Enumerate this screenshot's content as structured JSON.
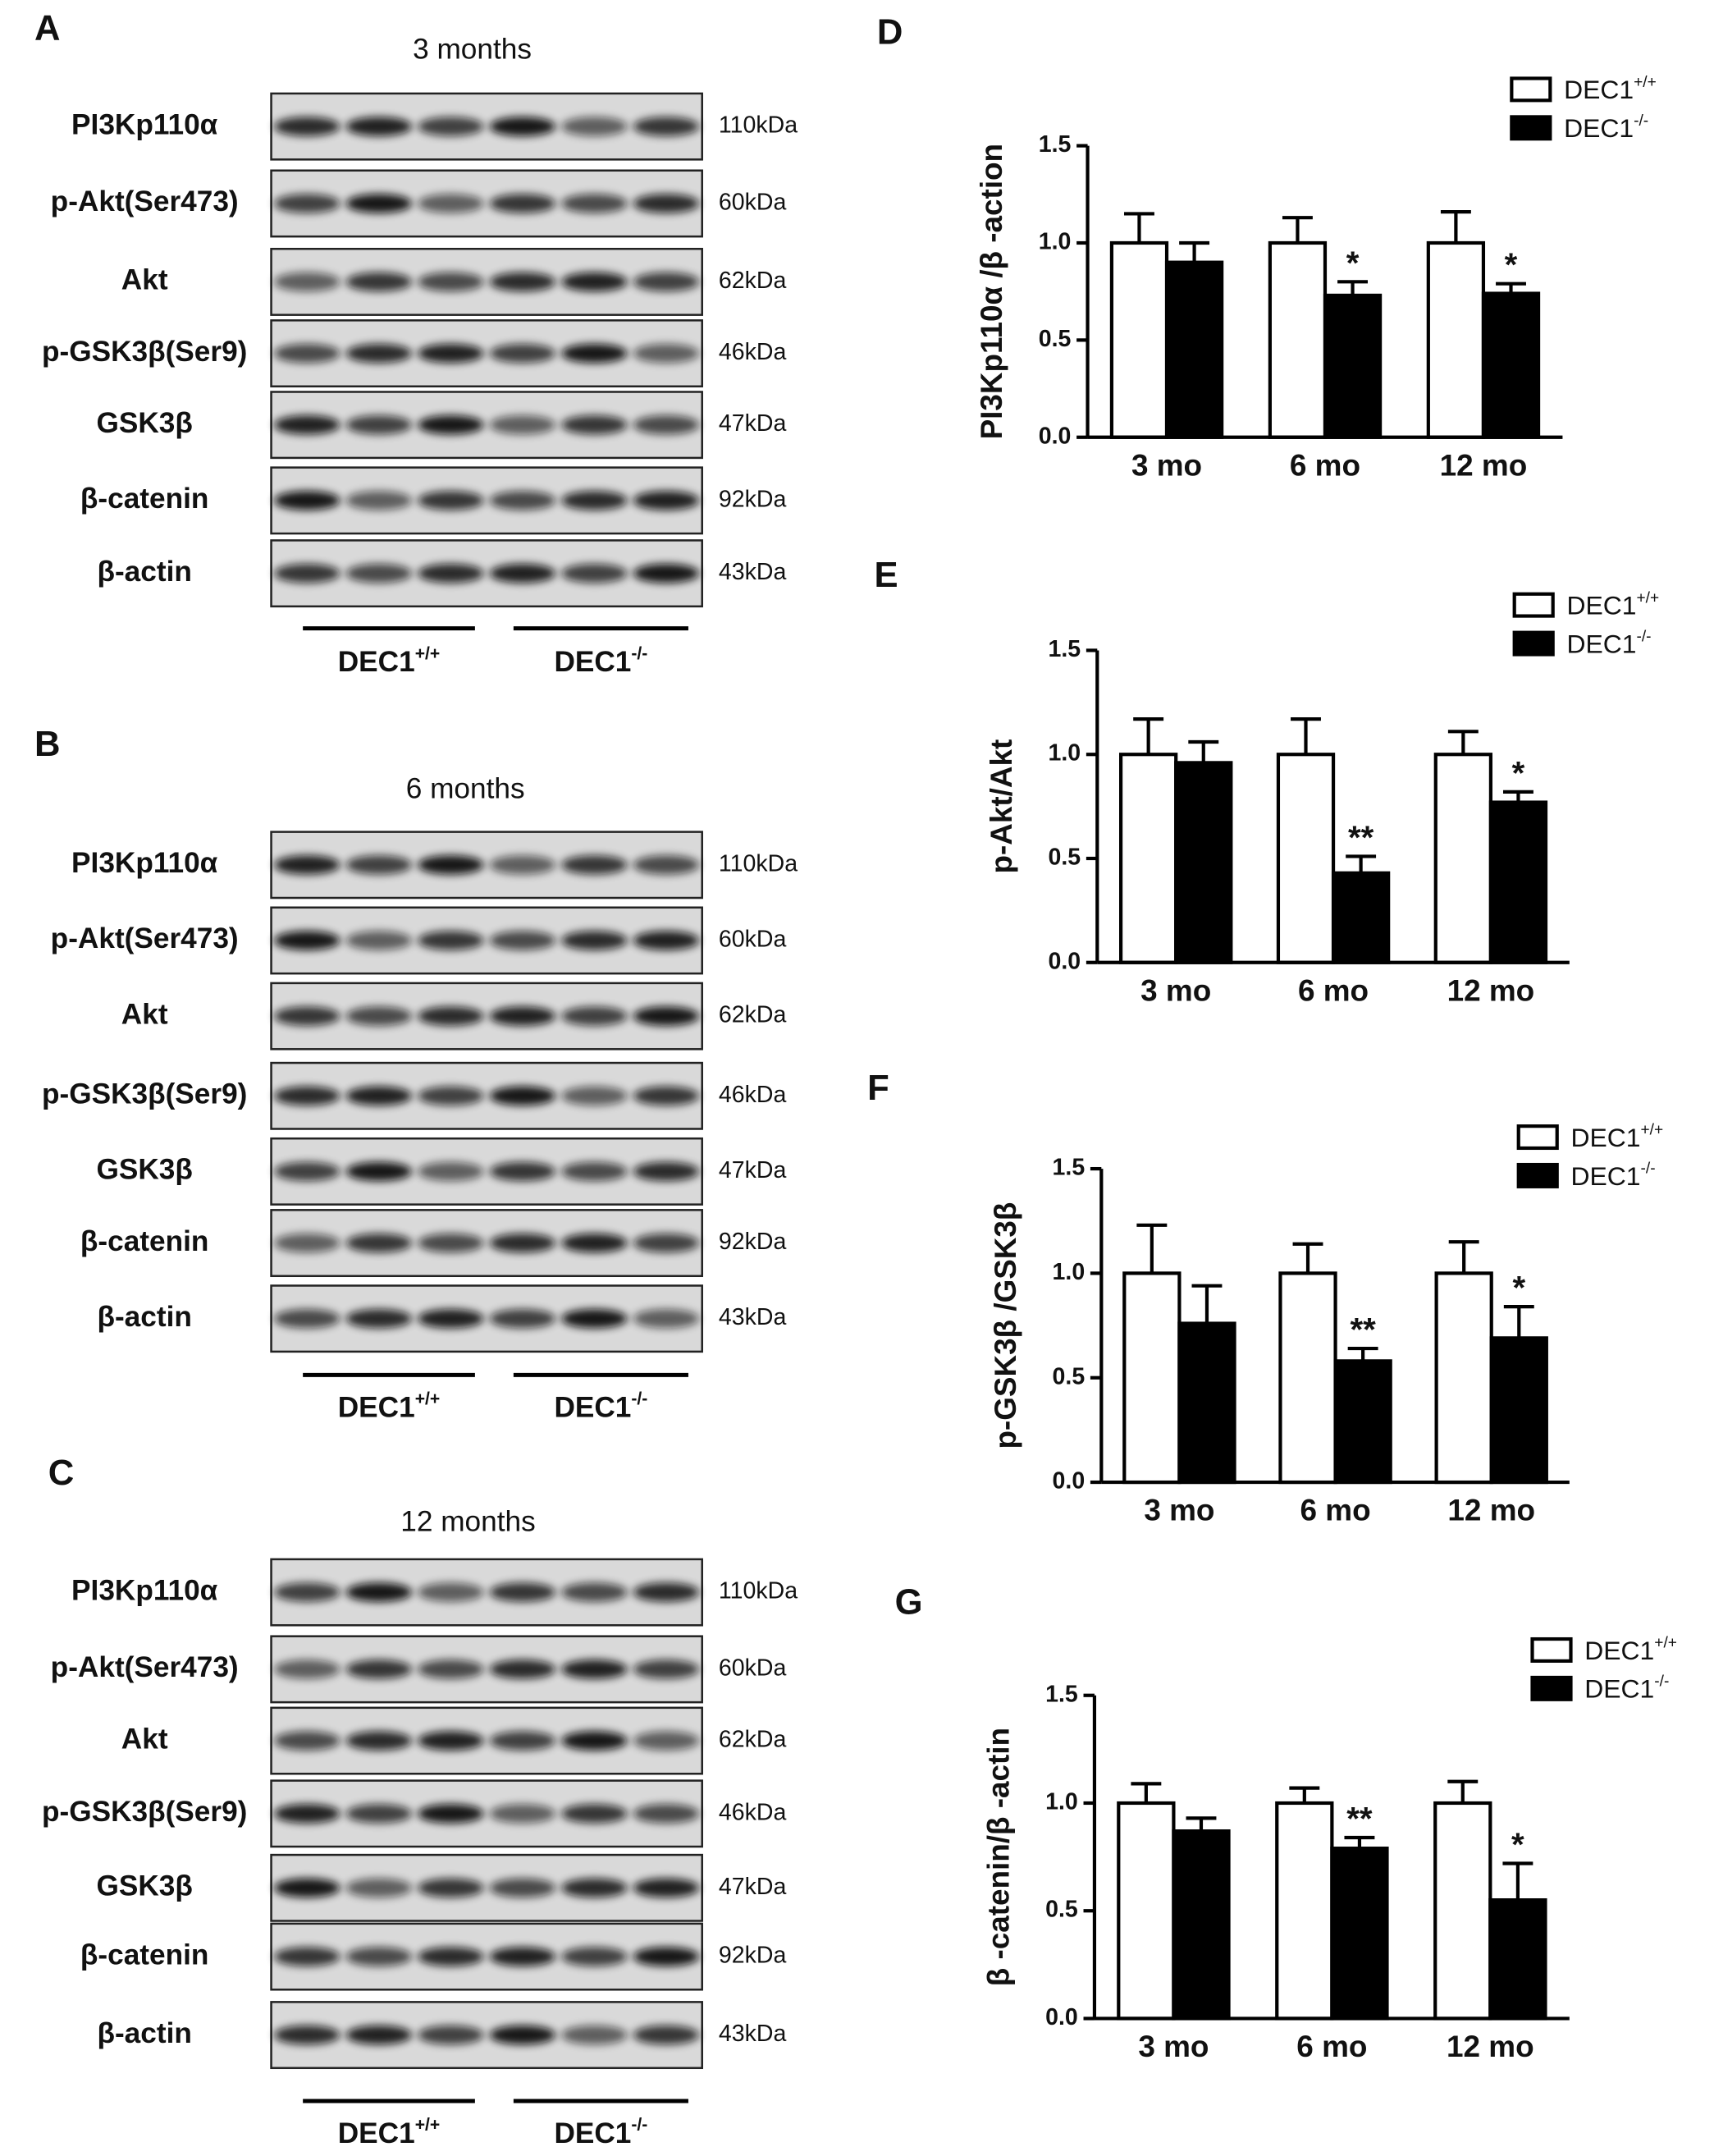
{
  "blots": [
    {
      "panel": "A",
      "title": "3 months",
      "rows": [
        {
          "label": "PI3Kp110α",
          "size": "110kDa"
        },
        {
          "label": "p-Akt(Ser473)",
          "size": "60kDa"
        },
        {
          "label": "Akt",
          "size": "62kDa"
        },
        {
          "label": "p-GSK3β(Ser9)",
          "size": "46kDa"
        },
        {
          "label": "GSK3β",
          "size": "47kDa"
        },
        {
          "label": "β-catenin",
          "size": "92kDa"
        },
        {
          "label": "β-actin",
          "size": "43kDa"
        }
      ],
      "groups": [
        {
          "name": "DEC1",
          "superscript": "+/+"
        },
        {
          "name": "DEC1",
          "superscript": "-/-"
        }
      ]
    },
    {
      "panel": "B",
      "title": "6 months",
      "rows": [
        {
          "label": "PI3Kp110α",
          "size": "110kDa"
        },
        {
          "label": "p-Akt(Ser473)",
          "size": "60kDa"
        },
        {
          "label": "Akt",
          "size": "62kDa"
        },
        {
          "label": "p-GSK3β(Ser9)",
          "size": "46kDa"
        },
        {
          "label": "GSK3β",
          "size": "47kDa"
        },
        {
          "label": "β-catenin",
          "size": "92kDa"
        },
        {
          "label": "β-actin",
          "size": "43kDa"
        }
      ],
      "groups": [
        {
          "name": "DEC1",
          "superscript": "+/+"
        },
        {
          "name": "DEC1",
          "superscript": "-/-"
        }
      ]
    },
    {
      "panel": "C",
      "title": "12 months",
      "rows": [
        {
          "label": "PI3Kp110α",
          "size": "110kDa"
        },
        {
          "label": "p-Akt(Ser473)",
          "size": "60kDa"
        },
        {
          "label": "Akt",
          "size": "62kDa"
        },
        {
          "label": "p-GSK3β(Ser9)",
          "size": "46kDa"
        },
        {
          "label": "GSK3β",
          "size": "47kDa"
        },
        {
          "label": "β-catenin",
          "size": "92kDa"
        },
        {
          "label": "β-actin",
          "size": "43kDa"
        }
      ],
      "groups": [
        {
          "name": "DEC1",
          "superscript": "+/+"
        },
        {
          "name": "DEC1",
          "superscript": "-/-"
        }
      ]
    }
  ],
  "chart_data": [
    {
      "type": "bar",
      "panel": "D",
      "y_label": "PI3Kp110α /β -action",
      "categories": [
        "3 mo",
        "6 mo",
        "12 mo"
      ],
      "ylim": [
        0,
        1.5
      ],
      "yticks": [
        {
          "value": 0,
          "label": "0.0"
        },
        0.5,
        {
          "value": 1,
          "label": "1.0"
        },
        1.5
      ],
      "series": [
        {
          "name": "DEC1",
          "superscript": "+/+",
          "color": "#ffffff",
          "values": [
            1,
            1,
            1
          ],
          "errors": [
            0.15,
            0.13,
            0.16
          ]
        },
        {
          "name": "DEC1",
          "superscript": "-/-",
          "color": "#000000",
          "values": [
            0.9,
            0.73,
            0.74
          ],
          "errors": [
            0.1,
            0.07,
            0.05
          ],
          "significance": [
            null,
            "*",
            "*"
          ]
        }
      ]
    },
    {
      "type": "bar",
      "panel": "E",
      "y_label": "p-Akt/Akt",
      "categories": [
        "3 mo",
        "6 mo",
        "12 mo"
      ],
      "ylim": [
        0,
        1.5
      ],
      "yticks": [
        {
          "value": 0,
          "label": "0.0"
        },
        0.5,
        {
          "value": 1,
          "label": "1.0"
        },
        1.5
      ],
      "series": [
        {
          "name": "DEC1",
          "superscript": "+/+",
          "color": "#ffffff",
          "values": [
            1,
            1,
            1
          ],
          "errors": [
            0.17,
            0.17,
            0.11
          ]
        },
        {
          "name": "DEC1",
          "superscript": "-/-",
          "color": "#000000",
          "values": [
            0.96,
            0.43,
            0.77
          ],
          "errors": [
            0.1,
            0.08,
            0.05
          ],
          "significance": [
            null,
            "**",
            "*"
          ]
        }
      ]
    },
    {
      "type": "bar",
      "panel": "F",
      "y_label": "p-GSK3β /GSK3β",
      "categories": [
        "3 mo",
        "6 mo",
        "12 mo"
      ],
      "ylim": [
        0,
        1.5
      ],
      "yticks": [
        {
          "value": 0,
          "label": "0.0"
        },
        0.5,
        {
          "value": 1,
          "label": "1.0"
        },
        1.5
      ],
      "series": [
        {
          "name": "DEC1",
          "superscript": "+/+",
          "color": "#ffffff",
          "values": [
            1,
            1,
            1
          ],
          "errors": [
            0.23,
            0.14,
            0.15
          ]
        },
        {
          "name": "DEC1",
          "superscript": "-/-",
          "color": "#000000",
          "values": [
            0.76,
            0.58,
            0.69
          ],
          "errors": [
            0.18,
            0.06,
            0.15
          ],
          "significance": [
            null,
            "**",
            "*"
          ]
        }
      ]
    },
    {
      "type": "bar",
      "panel": "G",
      "y_label": "β -catenin/β -actin",
      "categories": [
        "3 mo",
        "6 mo",
        "12 mo"
      ],
      "ylim": [
        0,
        1.5
      ],
      "yticks": [
        {
          "value": 0,
          "label": "0.0"
        },
        0.5,
        {
          "value": 1,
          "label": "1.0"
        },
        1.5
      ],
      "series": [
        {
          "name": "DEC1",
          "superscript": "+/+",
          "color": "#ffffff",
          "values": [
            1,
            1,
            1
          ],
          "errors": [
            0.09,
            0.07,
            0.1
          ]
        },
        {
          "name": "DEC1",
          "superscript": "-/-",
          "color": "#000000",
          "values": [
            0.87,
            0.79,
            0.55
          ],
          "errors": [
            0.06,
            0.05,
            0.17
          ],
          "significance": [
            null,
            "**",
            "*"
          ]
        }
      ]
    }
  ]
}
